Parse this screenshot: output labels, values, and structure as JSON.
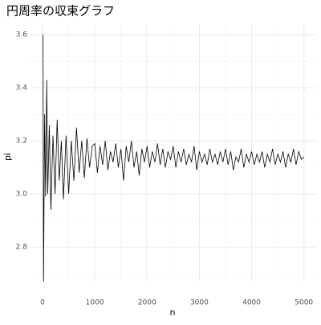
{
  "chart_data": {
    "type": "line",
    "title": "円周率の収束グラフ",
    "x_label": "n",
    "y_label": "pi",
    "x": [
      10,
      20,
      40,
      60,
      80,
      100,
      130,
      160,
      200,
      240,
      280,
      320,
      360,
      400,
      450,
      500,
      550,
      600,
      650,
      700,
      750,
      800,
      850,
      900,
      950,
      1000,
      1050,
      1100,
      1150,
      1200,
      1250,
      1300,
      1350,
      1400,
      1450,
      1500,
      1550,
      1600,
      1650,
      1700,
      1750,
      1800,
      1850,
      1900,
      1950,
      2000,
      2050,
      2100,
      2150,
      2200,
      2250,
      2300,
      2350,
      2400,
      2450,
      2500,
      2550,
      2600,
      2650,
      2700,
      2750,
      2800,
      2850,
      2900,
      2950,
      3000,
      3050,
      3100,
      3150,
      3200,
      3250,
      3300,
      3350,
      3400,
      3450,
      3500,
      3550,
      3600,
      3650,
      3700,
      3750,
      3800,
      3850,
      3900,
      3950,
      4000,
      4050,
      4100,
      4150,
      4200,
      4250,
      4300,
      4350,
      4400,
      4450,
      4500,
      4550,
      4600,
      4650,
      4700,
      4750,
      4800,
      4850,
      4900,
      4950,
      5000
    ],
    "series": [
      {
        "name": "pi",
        "color": "#000000",
        "values": [
          3.6,
          2.67,
          3.3,
          2.99,
          3.43,
          3.0,
          3.26,
          2.94,
          3.22,
          3.0,
          3.28,
          3.05,
          3.2,
          2.98,
          3.22,
          3.0,
          3.2,
          3.05,
          3.25,
          3.08,
          3.2,
          3.06,
          3.21,
          3.1,
          3.18,
          3.19,
          3.08,
          3.18,
          3.11,
          3.2,
          3.09,
          3.16,
          3.12,
          3.19,
          3.1,
          3.17,
          3.05,
          3.18,
          3.12,
          3.2,
          3.1,
          3.16,
          3.07,
          3.17,
          3.12,
          3.18,
          3.1,
          3.16,
          3.12,
          3.19,
          3.11,
          3.17,
          3.1,
          3.16,
          3.13,
          3.18,
          3.1,
          3.16,
          3.12,
          3.17,
          3.11,
          3.15,
          3.12,
          3.18,
          3.09,
          3.16,
          3.12,
          3.15,
          3.11,
          3.17,
          3.12,
          3.15,
          3.11,
          3.16,
          3.12,
          3.17,
          3.11,
          3.16,
          3.09,
          3.14,
          3.12,
          3.17,
          3.1,
          3.15,
          3.12,
          3.16,
          3.11,
          3.15,
          3.12,
          3.16,
          3.1,
          3.15,
          3.12,
          3.17,
          3.11,
          3.15,
          3.12,
          3.16,
          3.1,
          3.15,
          3.12,
          3.17,
          3.11,
          3.16,
          3.13,
          3.14
        ]
      }
    ],
    "xlim": [
      -230,
      5250
    ],
    "ylim": [
      2.67,
      3.64
    ],
    "xticks": [
      0,
      1000,
      2000,
      3000,
      4000,
      5000
    ],
    "yticks": [
      2.8,
      {
        "value": 3,
        "label": "3.0"
      },
      3.2,
      3.4,
      3.6
    ],
    "x_minor_ticks": [
      500,
      1500,
      2500,
      3500,
      4500
    ],
    "y_minor_ticks": [
      2.7,
      2.9,
      3.1,
      3.3,
      3.5
    ],
    "grid": true
  }
}
